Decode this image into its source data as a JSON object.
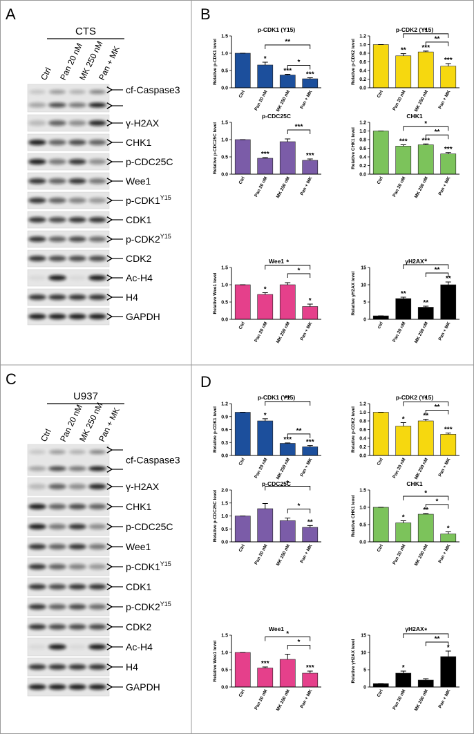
{
  "blots": [
    {
      "letter": "A",
      "cell_line": "CTS",
      "lanes": [
        "Ctrl",
        "Pan 20 nM",
        "MK 250 nM",
        "Pan + MK"
      ],
      "bands": [
        {
          "label": "cf-Caspase3"
        },
        {
          "label": "γ-H2AX"
        },
        {
          "label": "CHK1"
        },
        {
          "label": "p-CDC25C"
        },
        {
          "label": "Wee1"
        },
        {
          "label": "p-CDK1",
          "sup": "Y15"
        },
        {
          "label": "CDK1"
        },
        {
          "label": "p-CDK2",
          "sup": "Y15"
        },
        {
          "label": "CDK2"
        },
        {
          "label": "Ac-H4"
        },
        {
          "label": "H4"
        },
        {
          "label": "GAPDH"
        }
      ]
    },
    {
      "letter": "C",
      "cell_line": "U937",
      "lanes": [
        "Ctrl",
        "Pan 20 nM",
        "MK 250 nM",
        "Pan + MK"
      ],
      "bands": [
        {
          "label": "cf-Caspase3"
        },
        {
          "label": "γ-H2AX"
        },
        {
          "label": "CHK1"
        },
        {
          "label": "p-CDC25C"
        },
        {
          "label": "Wee1"
        },
        {
          "label": "p-CDK1",
          "sup": "Y15"
        },
        {
          "label": "CDK1"
        },
        {
          "label": "p-CDK2",
          "sup": "Y15"
        },
        {
          "label": "CDK2"
        },
        {
          "label": "Ac-H4"
        },
        {
          "label": "H4"
        },
        {
          "label": "GAPDH"
        }
      ]
    }
  ],
  "chart_groups": [
    {
      "letter": "B"
    },
    {
      "letter": "D"
    }
  ],
  "chart_data": [
    {
      "type": "bar",
      "title": "p-CDK1 (Y15)",
      "ylabel": "Relative p-CDK1 level",
      "color": "#1c4f9c",
      "categories": [
        "Ctrl",
        "Pan 20 nM",
        "MK 250 nM",
        "Pan + MK"
      ],
      "values": [
        1,
        0.66,
        0.37,
        0.26
      ],
      "errors": [
        0,
        0.08,
        0.02,
        0.03
      ],
      "annotations": [
        null,
        "*",
        "***",
        "***"
      ],
      "brackets": [
        {
          "pair": [
            1,
            3
          ],
          "label": "**"
        },
        {
          "pair": [
            2,
            3
          ],
          "label": "*"
        }
      ],
      "ylim": [
        0,
        1.5
      ],
      "yticks": [
        {
          "value": 0,
          "label": "0.0"
        },
        {
          "value": 0.5,
          "label": "0.5"
        },
        {
          "value": 1,
          "label": "1.0"
        },
        {
          "value": 1.5,
          "label": "1.5"
        }
      ]
    },
    {
      "type": "bar",
      "title": "p-CDK2 (Y15)",
      "ylabel": "Relative p-CDK2 level",
      "color": "#f6d80f",
      "categories": [
        "Ctrl",
        "Pan 20 nM",
        "MK 250 nM",
        "Pan + MK"
      ],
      "values": [
        1,
        0.74,
        0.83,
        0.5
      ],
      "errors": [
        0,
        0.05,
        0.02,
        0.06
      ],
      "annotations": [
        null,
        "**",
        "***",
        "***"
      ],
      "brackets": [
        {
          "pair": [
            1,
            3
          ],
          "label": "*"
        },
        {
          "pair": [
            2,
            3
          ],
          "label": "**"
        }
      ],
      "ylim": [
        0,
        1.2
      ],
      "yticks": [
        {
          "value": 0,
          "label": "0.0"
        },
        {
          "value": 0.2,
          "label": "0.2"
        },
        {
          "value": 0.4,
          "label": "0.4"
        },
        {
          "value": 0.6,
          "label": "0.6"
        },
        {
          "value": 0.8,
          "label": "0.8"
        },
        {
          "value": 1,
          "label": "1.0"
        },
        {
          "value": 1.2,
          "label": "1.2"
        }
      ]
    },
    {
      "type": "bar",
      "title": "p-CDC25C",
      "ylabel": "Relative p-CDC25C level",
      "color": "#7b5ca8",
      "categories": [
        "Ctrl",
        "Pan 20 nM",
        "MK 250 nM",
        "Pan + MK"
      ],
      "values": [
        1,
        0.46,
        0.94,
        0.4
      ],
      "errors": [
        0,
        0.02,
        0.08,
        0.04
      ],
      "annotations": [
        null,
        "***",
        null,
        "***"
      ],
      "brackets": [
        {
          "pair": [
            2,
            3
          ],
          "label": "***"
        }
      ],
      "ylim": [
        0,
        1.5
      ],
      "yticks": [
        {
          "value": 0,
          "label": "0.0"
        },
        {
          "value": 0.5,
          "label": "0.5"
        },
        {
          "value": 1,
          "label": "1.0"
        },
        {
          "value": 1.5,
          "label": "1.5"
        }
      ]
    },
    {
      "type": "bar",
      "title": "CHK1",
      "ylabel": "Relative CHK1 level",
      "color": "#7cc35b",
      "categories": [
        "Ctrl",
        "Pan 20 nM",
        "MK 250 nM",
        "Pan + MK"
      ],
      "values": [
        1,
        0.65,
        0.68,
        0.47
      ],
      "errors": [
        0,
        0.03,
        0.02,
        0.03
      ],
      "annotations": [
        null,
        "***",
        "***",
        "***"
      ],
      "brackets": [
        {
          "pair": [
            1,
            3
          ],
          "label": "*"
        },
        {
          "pair": [
            2,
            3
          ],
          "label": "**"
        }
      ],
      "ylim": [
        0,
        1.2
      ],
      "yticks": [
        {
          "value": 0,
          "label": "0.0"
        },
        {
          "value": 0.2,
          "label": "0.2"
        },
        {
          "value": 0.4,
          "label": "0.4"
        },
        {
          "value": 0.6,
          "label": "0.6"
        },
        {
          "value": 0.8,
          "label": "0.8"
        },
        {
          "value": 1,
          "label": "1.0"
        },
        {
          "value": 1.2,
          "label": "1.2"
        }
      ]
    },
    {
      "type": "bar",
      "title": "Wee1",
      "ylabel": "Relative Wee1 level",
      "color": "#e5408b",
      "categories": [
        "Ctrl",
        "Pan 20 nM",
        "MK 250 nM",
        "Pan + MK"
      ],
      "values": [
        1,
        0.72,
        1,
        0.37
      ],
      "errors": [
        0,
        0.05,
        0.06,
        0.07
      ],
      "annotations": [
        null,
        "*",
        null,
        "*"
      ],
      "brackets": [
        {
          "pair": [
            1,
            3
          ],
          "label": "*"
        },
        {
          "pair": [
            2,
            3
          ],
          "label": "*"
        }
      ],
      "ylim": [
        0,
        1.5
      ],
      "yticks": [
        {
          "value": 0,
          "label": "0.0"
        },
        {
          "value": 0.5,
          "label": "0.5"
        },
        {
          "value": 1,
          "label": "1.0"
        },
        {
          "value": 1.5,
          "label": "1.5"
        }
      ]
    },
    {
      "type": "bar",
      "title": "γH2AX",
      "ylabel": "Relative γH2AX level",
      "color": "#000000",
      "categories": [
        "ctrl",
        "Pan 20 nM",
        "MK 250 nM",
        "Pan + MK"
      ],
      "values": [
        1,
        6,
        3.5,
        10
      ],
      "errors": [
        0,
        0.4,
        0.3,
        0.8
      ],
      "annotations": [
        null,
        "**",
        "**",
        "**"
      ],
      "brackets": [
        {
          "pair": [
            1,
            3
          ],
          "label": "*"
        },
        {
          "pair": [
            2,
            3
          ],
          "label": "**"
        }
      ],
      "ylim": [
        0,
        15
      ],
      "yticks": [
        0,
        5,
        10,
        15
      ]
    },
    {
      "type": "bar",
      "title": "p-CDK1 (Y15)",
      "ylabel": "Relative p-CDK1 level",
      "color": "#1c4f9c",
      "categories": [
        "Ctrl",
        "Pan 20 nM",
        "MK 250 nM",
        "Pan + MK"
      ],
      "values": [
        1,
        0.8,
        0.28,
        0.2
      ],
      "errors": [
        0,
        0.05,
        0.01,
        0.03
      ],
      "annotations": [
        null,
        "*",
        "***",
        "***"
      ],
      "brackets": [
        {
          "pair": [
            1,
            3
          ],
          "label": "**"
        },
        {
          "pair": [
            2,
            3
          ],
          "label": "**"
        }
      ],
      "ylim": [
        0,
        1.2
      ],
      "yticks": [
        {
          "value": 0,
          "label": "0.0"
        },
        {
          "value": 0.3,
          "label": "0.3"
        },
        {
          "value": 0.6,
          "label": "0.6"
        },
        {
          "value": 0.9,
          "label": "0.9"
        },
        {
          "value": 1.2,
          "label": "1.2"
        }
      ]
    },
    {
      "type": "bar",
      "title": "p-CDK2 (Y15)",
      "ylabel": "Relative p-CDK2 level",
      "color": "#f6d80f",
      "categories": [
        "Ctrl",
        "Pan 20 nM",
        "MK 250 nM",
        "Pan + MK"
      ],
      "values": [
        1,
        0.68,
        0.8,
        0.49
      ],
      "errors": [
        0,
        0.08,
        0.04,
        0.03
      ],
      "annotations": [
        null,
        "*",
        "**",
        "***"
      ],
      "brackets": [
        {
          "pair": [
            1,
            3
          ],
          "label": "*"
        },
        {
          "pair": [
            2,
            3
          ],
          "label": "**"
        }
      ],
      "ylim": [
        0,
        1.2
      ],
      "yticks": [
        {
          "value": 0,
          "label": "0.0"
        },
        {
          "value": 0.2,
          "label": "0.2"
        },
        {
          "value": 0.4,
          "label": "0.4"
        },
        {
          "value": 0.6,
          "label": "0.6"
        },
        {
          "value": 0.8,
          "label": "0.8"
        },
        {
          "value": 1,
          "label": "1.0"
        },
        {
          "value": 1.2,
          "label": "1.2"
        }
      ]
    },
    {
      "type": "bar",
      "title": "p-CDC25C",
      "ylabel": "Relative p-CDC25C level",
      "color": "#7b5ca8",
      "categories": [
        "Ctrl",
        "Pan 20 nM",
        "MK 250 nM",
        "Pan + MK"
      ],
      "values": [
        1,
        1.28,
        0.82,
        0.56
      ],
      "errors": [
        0,
        0.2,
        0.1,
        0.07
      ],
      "annotations": [
        null,
        null,
        null,
        "**"
      ],
      "brackets": [
        {
          "pair": [
            1,
            3
          ],
          "label": "*"
        },
        {
          "pair": [
            2,
            3
          ],
          "label": "*"
        }
      ],
      "ylim": [
        0,
        2
      ],
      "yticks": [
        {
          "value": 0,
          "label": "0.0"
        },
        {
          "value": 0.5,
          "label": "0.5"
        },
        {
          "value": 1,
          "label": "1.0"
        },
        {
          "value": 1.5,
          "label": "1.5"
        },
        {
          "value": 2,
          "label": "2.0"
        }
      ]
    },
    {
      "type": "bar",
      "title": "CHK1",
      "ylabel": "Relative CHK1 level",
      "color": "#7cc35b",
      "categories": [
        "Ctrl",
        "Pan 20 nM",
        "MK 250 nM",
        "Pan + MK"
      ],
      "values": [
        1,
        0.55,
        0.8,
        0.23
      ],
      "errors": [
        0,
        0.06,
        0.02,
        0.06
      ],
      "annotations": [
        null,
        "*",
        "**",
        "*"
      ],
      "brackets": [
        {
          "pair": [
            1,
            3
          ],
          "label": "*"
        },
        {
          "pair": [
            2,
            3
          ],
          "label": "*"
        }
      ],
      "ylim": [
        0,
        1.5
      ],
      "yticks": [
        {
          "value": 0,
          "label": "0.0"
        },
        {
          "value": 0.5,
          "label": "0.5"
        },
        {
          "value": 1,
          "label": "1.0"
        },
        {
          "value": 1.5,
          "label": "1.5"
        }
      ]
    },
    {
      "type": "bar",
      "title": "Wee1",
      "ylabel": "Relative Wee1 level",
      "color": "#e5408b",
      "categories": [
        "Ctrl",
        "Pan 20 nM",
        "MK 250 nM",
        "Pan + MK"
      ],
      "values": [
        1,
        0.55,
        0.8,
        0.4
      ],
      "errors": [
        0,
        0.03,
        0.15,
        0.06
      ],
      "annotations": [
        null,
        "***",
        null,
        "***"
      ],
      "brackets": [
        {
          "pair": [
            1,
            3
          ],
          "label": "*"
        },
        {
          "pair": [
            2,
            3
          ],
          "label": "*"
        }
      ],
      "ylim": [
        0,
        1.5
      ],
      "yticks": [
        {
          "value": 0,
          "label": "0.0"
        },
        {
          "value": 0.5,
          "label": "0.5"
        },
        {
          "value": 1,
          "label": "1.0"
        },
        {
          "value": 1.5,
          "label": "1.5"
        }
      ]
    },
    {
      "type": "bar",
      "title": "γH2AX",
      "ylabel": "Relative γH2AX level",
      "color": "#000000",
      "categories": [
        "Ctrl",
        "Pan 20 nM",
        "MK 250 nM",
        "Pan + MK"
      ],
      "values": [
        1,
        4,
        2,
        8.8
      ],
      "errors": [
        0,
        0.6,
        0.4,
        1.6
      ],
      "annotations": [
        null,
        "*",
        null,
        "*"
      ],
      "brackets": [
        {
          "pair": [
            1,
            3
          ],
          "label": "*"
        },
        {
          "pair": [
            2,
            3
          ],
          "label": "**"
        }
      ],
      "ylim": [
        0,
        15
      ],
      "yticks": [
        0,
        5,
        10,
        15
      ]
    }
  ]
}
